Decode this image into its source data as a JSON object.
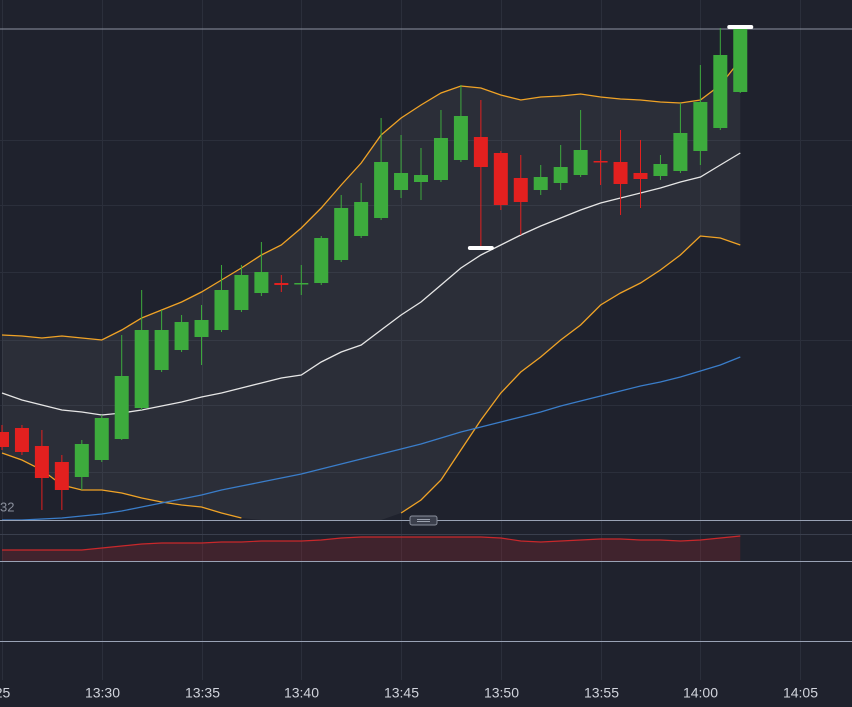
{
  "chart_data": {
    "type": "candlestick",
    "x": [
      0,
      1,
      2,
      3,
      4,
      5,
      6,
      7,
      8,
      9,
      10,
      11,
      12,
      13,
      14,
      15,
      16,
      17,
      18,
      19,
      20,
      21,
      22,
      23,
      24,
      25,
      26,
      27,
      28,
      29,
      30,
      31,
      32,
      33,
      34,
      35,
      36,
      37
    ],
    "xlim": [
      -0.1,
      42.6
    ],
    "xticks": [
      {
        "value": 0,
        "label": "25"
      },
      {
        "value": 5,
        "label": "13:30"
      },
      {
        "value": 10,
        "label": "13:35"
      },
      {
        "value": 15,
        "label": "13:40"
      },
      {
        "value": 20,
        "label": "13:45"
      },
      {
        "value": 25,
        "label": "13:50"
      },
      {
        "value": 30,
        "label": "13:55"
      },
      {
        "value": 35,
        "label": "14:00"
      },
      {
        "value": 40,
        "label": "14:05"
      }
    ],
    "ylim": [
      0,
      520
    ],
    "yticks": [
      48,
      115,
      180,
      248,
      315,
      380
    ],
    "grid": true,
    "up_color": "#3dab3d",
    "down_color": "#e3201f",
    "open": [
      88,
      92,
      74,
      58,
      43,
      60,
      81,
      112,
      150,
      170,
      183,
      190,
      210,
      227,
      237,
      236,
      237,
      260,
      284,
      302,
      330,
      338,
      340,
      360,
      383,
      367,
      342,
      330,
      337,
      345,
      359,
      358,
      347,
      344,
      349,
      369,
      392,
      428
    ],
    "high": [
      95,
      95,
      90,
      65,
      80,
      105,
      185,
      230,
      210,
      205,
      215,
      255,
      255,
      278,
      245,
      255,
      284,
      325,
      337,
      402,
      385,
      372,
      410,
      435,
      420,
      369,
      365,
      355,
      375,
      410,
      370,
      390,
      380,
      365,
      417,
      455,
      492,
      493
    ],
    "low": [
      70,
      65,
      10,
      10,
      30,
      58,
      80,
      110,
      148,
      168,
      155,
      188,
      208,
      224,
      228,
      225,
      235,
      258,
      282,
      300,
      322,
      320,
      338,
      358,
      272,
      310,
      285,
      325,
      330,
      343,
      335,
      305,
      312,
      340,
      347,
      355,
      390,
      427
    ],
    "close": [
      73,
      68,
      42,
      30,
      76,
      102,
      144,
      190,
      190,
      198,
      200,
      230,
      245,
      248,
      235,
      237,
      282,
      312,
      318,
      358,
      347,
      345,
      382,
      404,
      353,
      315,
      318,
      343,
      353,
      370,
      358,
      336,
      341,
      356,
      387,
      418,
      465,
      491
    ],
    "overlays": [
      {
        "color": "#f0a326",
        "values": [
          185,
          184,
          182,
          184,
          182,
          180,
          190,
          202,
          210,
          218,
          228,
          240,
          252,
          265,
          275,
          292,
          312,
          335,
          357,
          385,
          402,
          415,
          427,
          434,
          432,
          425,
          420,
          423,
          424,
          426,
          423,
          421,
          420,
          418,
          417,
          420,
          435,
          460
        ]
      },
      {
        "color": "#e6e6e6",
        "values": [
          127,
          120,
          115,
          110,
          108,
          105,
          107,
          110,
          114,
          118,
          123,
          127,
          132,
          137,
          142,
          145,
          158,
          168,
          175,
          190,
          205,
          218,
          235,
          252,
          265,
          275,
          285,
          294,
          302,
          310,
          317,
          322,
          327,
          332,
          338,
          343,
          355,
          367
        ]
      },
      {
        "color": "#f0a326",
        "values": [
          67,
          60,
          50,
          35,
          30,
          30,
          27,
          22,
          18,
          15,
          13,
          7,
          2,
          null,
          null,
          null,
          null,
          null,
          null,
          null,
          7,
          20,
          40,
          70,
          100,
          127,
          148,
          163,
          180,
          195,
          215,
          227,
          237,
          250,
          265,
          284,
          282,
          275
        ]
      },
      {
        "color": "#3a7dc9",
        "values": [
          0,
          0,
          1,
          2,
          4,
          6,
          9,
          13,
          17,
          21,
          25,
          30,
          34,
          38,
          42,
          46,
          51,
          56,
          61,
          66,
          71,
          76,
          82,
          88,
          93,
          98,
          103,
          108,
          114,
          119,
          124,
          129,
          134,
          138,
          143,
          149,
          155,
          163
        ]
      }
    ],
    "indicator": {
      "color": "#c9282b",
      "ylim": [
        0,
        40
      ],
      "values": [
        11,
        11,
        11,
        11,
        11,
        13,
        15,
        17,
        18,
        18,
        18,
        19,
        19,
        20,
        20,
        20,
        21,
        23,
        24,
        24,
        24,
        24,
        24,
        24,
        24,
        23,
        20,
        19,
        20,
        21,
        22,
        22,
        21,
        21,
        20,
        21,
        23,
        25
      ]
    },
    "price_label": "32"
  }
}
